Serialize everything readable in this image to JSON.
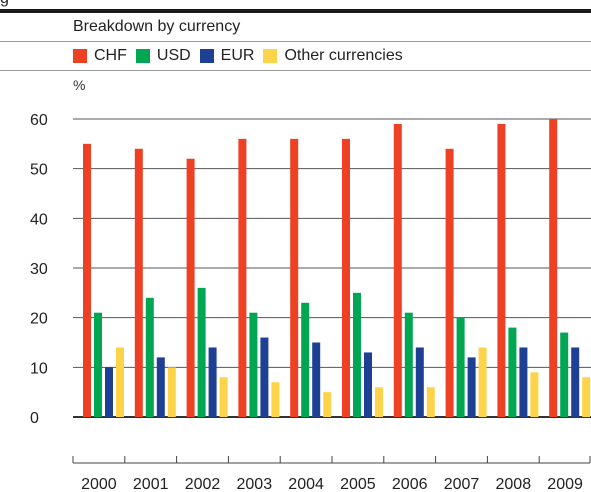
{
  "figure": {
    "title_fragment": "g",
    "subtitle": "Breakdown by currency",
    "unit_label": "%"
  },
  "legend": {
    "items": [
      {
        "label": "CHF",
        "color": "#ee4023"
      },
      {
        "label": "USD",
        "color": "#00a651"
      },
      {
        "label": "EUR",
        "color": "#1d3f94"
      },
      {
        "label": "Other currencies",
        "color": "#fdd34a"
      }
    ]
  },
  "chart_data": {
    "type": "bar",
    "title": "",
    "xlabel": "",
    "ylabel": "%",
    "categories": [
      "2000",
      "2001",
      "2002",
      "2003",
      "2004",
      "2005",
      "2006",
      "2007",
      "2008",
      "2009"
    ],
    "series": [
      {
        "name": "CHF",
        "color": "#ee4023",
        "values": [
          55,
          54,
          52,
          56,
          56,
          56,
          59,
          54,
          59,
          60
        ]
      },
      {
        "name": "USD",
        "color": "#00a651",
        "values": [
          21,
          24,
          26,
          21,
          23,
          25,
          21,
          20,
          18,
          17
        ]
      },
      {
        "name": "EUR",
        "color": "#1d3f94",
        "values": [
          10,
          12,
          14,
          16,
          15,
          13,
          14,
          12,
          14,
          14
        ]
      },
      {
        "name": "Other currencies",
        "color": "#fdd34a",
        "values": [
          14,
          10,
          8,
          7,
          5,
          6,
          6,
          14,
          9,
          8
        ]
      }
    ],
    "ylim": [
      0,
      60
    ],
    "yticks": [
      0,
      10,
      20,
      30,
      40,
      50,
      60
    ],
    "grid": true,
    "legend_position": "top-left"
  }
}
